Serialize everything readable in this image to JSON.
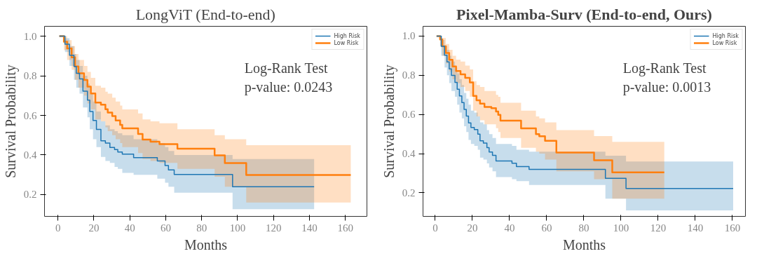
{
  "chart_data": [
    {
      "type": "step",
      "title": "LongViT (End-to-end)",
      "xlabel": "Months",
      "ylabel": "Survival Probability",
      "annotations": [
        "Log-Rank Test",
        "p-value: 0.0243"
      ],
      "xlim": [
        -7.5,
        172
      ],
      "ylim": [
        0.09,
        1.05
      ],
      "xticks": [
        0,
        20,
        40,
        60,
        80,
        100,
        120,
        140,
        160
      ],
      "yticks": [
        0.2,
        0.4,
        0.6,
        0.8,
        {
          "value": 1.0,
          "label": "1.0"
        }
      ],
      "grid": false,
      "legend": "top right",
      "series": [
        {
          "name": "High Risk",
          "color": "#1f77b4",
          "x": [
            0.75,
            3.9,
            6.4,
            8.9,
            10.2,
            12.0,
            13.9,
            16.4,
            17.7,
            19.5,
            21.4,
            23.9,
            26.4,
            28.9,
            31.5,
            33.3,
            35.8,
            42.1,
            55.3,
            59.6,
            61.5,
            64.7,
            97.2,
            142.6
          ],
          "values": [
            1.0,
            0.96,
            0.904,
            0.847,
            0.813,
            0.784,
            0.722,
            0.677,
            0.62,
            0.574,
            0.529,
            0.472,
            0.46,
            0.438,
            0.427,
            0.415,
            0.404,
            0.387,
            0.37,
            0.347,
            0.325,
            0.302,
            0.24,
            0.24
          ],
          "lower": [
            1.0,
            0.92,
            0.85,
            0.78,
            0.74,
            0.71,
            0.64,
            0.59,
            0.53,
            0.48,
            0.44,
            0.39,
            0.37,
            0.36,
            0.34,
            0.33,
            0.31,
            0.3,
            0.28,
            0.26,
            0.24,
            0.21,
            0.126,
            0.126
          ],
          "upper": [
            1.0,
            0.99,
            0.95,
            0.91,
            0.88,
            0.85,
            0.8,
            0.76,
            0.71,
            0.67,
            0.62,
            0.57,
            0.55,
            0.53,
            0.52,
            0.51,
            0.5,
            0.48,
            0.46,
            0.44,
            0.42,
            0.4,
            0.38,
            0.38
          ]
        },
        {
          "name": "Low Risk",
          "color": "#ff7f0e",
          "x": [
            0.75,
            3.3,
            5.1,
            7.6,
            9.5,
            11.4,
            14.5,
            16.4,
            18.3,
            20.8,
            23.9,
            26.4,
            27.7,
            30.2,
            32.1,
            34.6,
            35.8,
            44.6,
            47.1,
            51.5,
            56.5,
            66.5,
            87.2,
            92.9,
            104.8,
            163.0
          ],
          "values": [
            1.0,
            0.972,
            0.938,
            0.893,
            0.847,
            0.813,
            0.779,
            0.745,
            0.711,
            0.665,
            0.654,
            0.631,
            0.614,
            0.597,
            0.574,
            0.552,
            0.535,
            0.506,
            0.478,
            0.467,
            0.455,
            0.432,
            0.398,
            0.359,
            0.299,
            0.299
          ],
          "lower": [
            1.0,
            0.93,
            0.88,
            0.83,
            0.78,
            0.74,
            0.7,
            0.66,
            0.63,
            0.58,
            0.57,
            0.54,
            0.52,
            0.5,
            0.48,
            0.46,
            0.44,
            0.41,
            0.38,
            0.37,
            0.36,
            0.33,
            0.29,
            0.24,
            0.16,
            0.16
          ],
          "upper": [
            1.0,
            1.0,
            0.98,
            0.95,
            0.91,
            0.88,
            0.85,
            0.82,
            0.79,
            0.75,
            0.74,
            0.72,
            0.71,
            0.69,
            0.67,
            0.65,
            0.63,
            0.61,
            0.58,
            0.57,
            0.56,
            0.53,
            0.5,
            0.48,
            0.45,
            0.45
          ]
        }
      ]
    },
    {
      "type": "step",
      "title": "Pixel-Mamba-Surv (End-to-end, Ours)",
      "xlabel": "Months",
      "ylabel": "Survival Probability",
      "annotations": [
        "Log-Rank Test",
        "p-value: 0.0013"
      ],
      "xlim": [
        -6.6,
        167
      ],
      "ylim": [
        0.08,
        1.05
      ],
      "xticks": [
        0,
        20,
        40,
        60,
        80,
        100,
        120,
        140,
        160
      ],
      "yticks": [
        0.2,
        0.4,
        0.6,
        0.8,
        {
          "value": 1.0,
          "label": "1.0"
        }
      ],
      "grid": false,
      "legend": "top right",
      "series": [
        {
          "name": "High Risk",
          "color": "#1f77b4",
          "x": [
            0.7,
            3.2,
            5.0,
            6.3,
            7.5,
            8.7,
            10.6,
            11.8,
            13.0,
            14.3,
            15.5,
            16.7,
            17.9,
            19.2,
            21.0,
            22.9,
            24.1,
            25.9,
            27.8,
            29.0,
            30.8,
            32.7,
            41.3,
            43.7,
            50.5,
            91.6,
            102.7,
            160.4
          ],
          "values": [
            1.0,
            0.948,
            0.902,
            0.868,
            0.833,
            0.799,
            0.764,
            0.729,
            0.695,
            0.661,
            0.626,
            0.592,
            0.557,
            0.534,
            0.523,
            0.5,
            0.466,
            0.454,
            0.431,
            0.408,
            0.391,
            0.363,
            0.351,
            0.334,
            0.32,
            0.274,
            0.222,
            0.222
          ],
          "lower": [
            1.0,
            0.9,
            0.84,
            0.8,
            0.76,
            0.72,
            0.69,
            0.65,
            0.61,
            0.58,
            0.54,
            0.51,
            0.47,
            0.45,
            0.44,
            0.42,
            0.38,
            0.37,
            0.35,
            0.33,
            0.31,
            0.28,
            0.27,
            0.26,
            0.24,
            0.17,
            0.11,
            0.11
          ],
          "upper": [
            1.0,
            0.98,
            0.95,
            0.93,
            0.9,
            0.87,
            0.84,
            0.81,
            0.78,
            0.75,
            0.71,
            0.68,
            0.65,
            0.62,
            0.61,
            0.59,
            0.56,
            0.55,
            0.52,
            0.5,
            0.48,
            0.45,
            0.44,
            0.42,
            0.41,
            0.39,
            0.36,
            0.36
          ]
        },
        {
          "name": "Low Risk",
          "color": "#ff7f0e",
          "x": [
            0.7,
            2.6,
            3.8,
            5.7,
            7.5,
            9.3,
            11.2,
            13.6,
            16.1,
            18.6,
            20.4,
            22.2,
            24.1,
            26.5,
            30.2,
            32.7,
            33.9,
            35.1,
            46.2,
            54.2,
            56.0,
            59.1,
            65.2,
            85.5,
            95.3,
            123.3
          ],
          "values": [
            1.0,
            0.983,
            0.948,
            0.914,
            0.879,
            0.845,
            0.822,
            0.805,
            0.787,
            0.764,
            0.695,
            0.672,
            0.655,
            0.638,
            0.632,
            0.615,
            0.598,
            0.569,
            0.529,
            0.5,
            0.489,
            0.466,
            0.406,
            0.366,
            0.305,
            0.305
          ],
          "lower": [
            1.0,
            0.95,
            0.9,
            0.86,
            0.82,
            0.78,
            0.76,
            0.74,
            0.72,
            0.69,
            0.62,
            0.59,
            0.57,
            0.55,
            0.55,
            0.53,
            0.51,
            0.48,
            0.43,
            0.41,
            0.4,
            0.37,
            0.31,
            0.27,
            0.17,
            0.17
          ],
          "upper": [
            1.0,
            1.0,
            0.99,
            0.96,
            0.93,
            0.9,
            0.88,
            0.87,
            0.85,
            0.83,
            0.77,
            0.75,
            0.74,
            0.72,
            0.72,
            0.7,
            0.69,
            0.66,
            0.62,
            0.59,
            0.58,
            0.56,
            0.52,
            0.49,
            0.46,
            0.46
          ]
        }
      ]
    }
  ]
}
